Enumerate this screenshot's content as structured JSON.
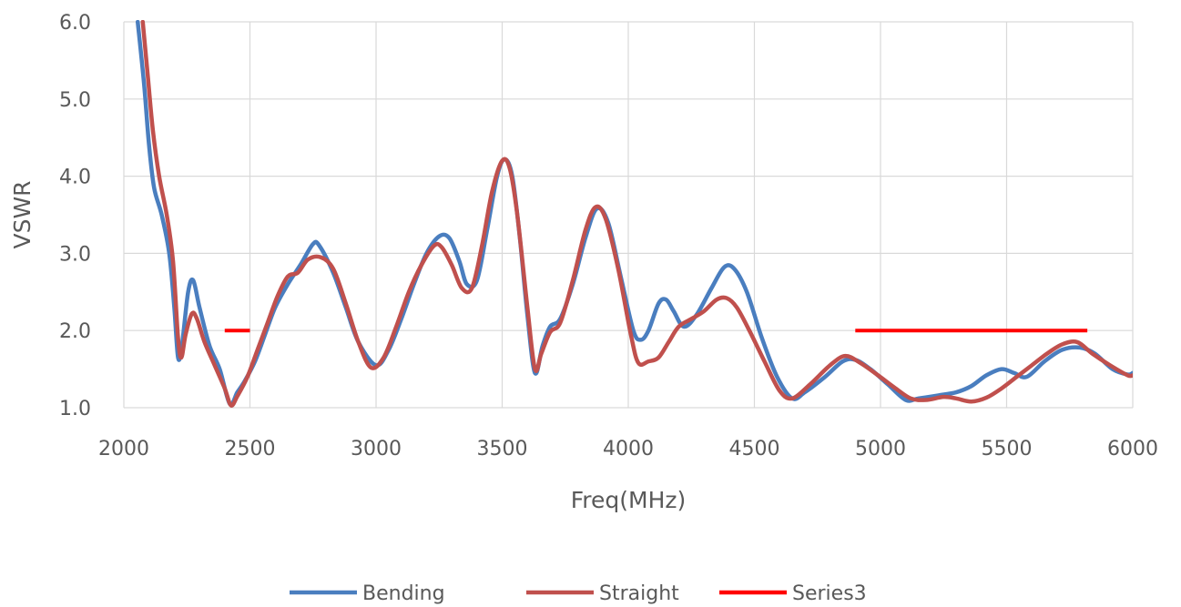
{
  "chart_data": {
    "type": "line",
    "title": "",
    "xlabel": "Freq(MHz)",
    "ylabel": "VSWR",
    "xlim": [
      2000,
      6000
    ],
    "ylim": [
      1.0,
      6.0
    ],
    "x_ticks": [
      "2000",
      "2500",
      "3000",
      "3500",
      "4000",
      "4500",
      "5000",
      "5500",
      "6000"
    ],
    "y_ticks": [
      "1.0",
      "2.0",
      "3.0",
      "4.0",
      "5.0",
      "6.0"
    ],
    "grid": true,
    "legend_position": "bottom",
    "series": [
      {
        "name": "Bending",
        "color": "#4a7ebf",
        "points": [
          [
            2055,
            6.0
          ],
          [
            2080,
            5.2
          ],
          [
            2100,
            4.4
          ],
          [
            2120,
            3.85
          ],
          [
            2150,
            3.5
          ],
          [
            2180,
            3.0
          ],
          [
            2200,
            2.3
          ],
          [
            2215,
            1.65
          ],
          [
            2230,
            1.8
          ],
          [
            2255,
            2.5
          ],
          [
            2275,
            2.65
          ],
          [
            2300,
            2.3
          ],
          [
            2340,
            1.8
          ],
          [
            2380,
            1.5
          ],
          [
            2420,
            1.05
          ],
          [
            2450,
            1.2
          ],
          [
            2480,
            1.35
          ],
          [
            2520,
            1.6
          ],
          [
            2560,
            1.95
          ],
          [
            2600,
            2.3
          ],
          [
            2650,
            2.6
          ],
          [
            2700,
            2.85
          ],
          [
            2750,
            3.12
          ],
          [
            2775,
            3.1
          ],
          [
            2830,
            2.75
          ],
          [
            2880,
            2.3
          ],
          [
            2930,
            1.85
          ],
          [
            3000,
            1.55
          ],
          [
            3050,
            1.75
          ],
          [
            3100,
            2.15
          ],
          [
            3150,
            2.6
          ],
          [
            3200,
            3.0
          ],
          [
            3250,
            3.22
          ],
          [
            3290,
            3.2
          ],
          [
            3330,
            2.9
          ],
          [
            3360,
            2.6
          ],
          [
            3400,
            2.65
          ],
          [
            3440,
            3.3
          ],
          [
            3480,
            4.0
          ],
          [
            3510,
            4.22
          ],
          [
            3540,
            4.0
          ],
          [
            3570,
            3.2
          ],
          [
            3600,
            2.2
          ],
          [
            3630,
            1.45
          ],
          [
            3660,
            1.8
          ],
          [
            3690,
            2.05
          ],
          [
            3730,
            2.15
          ],
          [
            3780,
            2.6
          ],
          [
            3830,
            3.2
          ],
          [
            3875,
            3.58
          ],
          [
            3920,
            3.4
          ],
          [
            3970,
            2.7
          ],
          [
            4020,
            2.0
          ],
          [
            4050,
            1.88
          ],
          [
            4080,
            2.0
          ],
          [
            4120,
            2.35
          ],
          [
            4150,
            2.4
          ],
          [
            4180,
            2.25
          ],
          [
            4220,
            2.05
          ],
          [
            4270,
            2.2
          ],
          [
            4330,
            2.55
          ],
          [
            4380,
            2.82
          ],
          [
            4420,
            2.8
          ],
          [
            4470,
            2.5
          ],
          [
            4530,
            1.9
          ],
          [
            4590,
            1.4
          ],
          [
            4650,
            1.12
          ],
          [
            4700,
            1.2
          ],
          [
            4780,
            1.4
          ],
          [
            4850,
            1.6
          ],
          [
            4900,
            1.62
          ],
          [
            4960,
            1.5
          ],
          [
            5030,
            1.3
          ],
          [
            5100,
            1.1
          ],
          [
            5150,
            1.12
          ],
          [
            5230,
            1.16
          ],
          [
            5300,
            1.2
          ],
          [
            5360,
            1.28
          ],
          [
            5420,
            1.42
          ],
          [
            5480,
            1.5
          ],
          [
            5530,
            1.45
          ],
          [
            5580,
            1.4
          ],
          [
            5650,
            1.6
          ],
          [
            5720,
            1.75
          ],
          [
            5790,
            1.78
          ],
          [
            5850,
            1.7
          ],
          [
            5920,
            1.5
          ],
          [
            5980,
            1.43
          ],
          [
            6000,
            1.45
          ]
        ]
      },
      {
        "name": "Straight",
        "color": "#c0504d",
        "points": [
          [
            2075,
            6.0
          ],
          [
            2095,
            5.3
          ],
          [
            2115,
            4.6
          ],
          [
            2140,
            4.0
          ],
          [
            2170,
            3.5
          ],
          [
            2195,
            2.9
          ],
          [
            2215,
            1.9
          ],
          [
            2228,
            1.65
          ],
          [
            2245,
            1.95
          ],
          [
            2270,
            2.22
          ],
          [
            2290,
            2.15
          ],
          [
            2320,
            1.85
          ],
          [
            2360,
            1.55
          ],
          [
            2400,
            1.25
          ],
          [
            2425,
            1.03
          ],
          [
            2450,
            1.15
          ],
          [
            2490,
            1.4
          ],
          [
            2530,
            1.75
          ],
          [
            2570,
            2.1
          ],
          [
            2610,
            2.45
          ],
          [
            2650,
            2.7
          ],
          [
            2690,
            2.75
          ],
          [
            2730,
            2.92
          ],
          [
            2780,
            2.95
          ],
          [
            2830,
            2.8
          ],
          [
            2880,
            2.35
          ],
          [
            2930,
            1.85
          ],
          [
            2980,
            1.52
          ],
          [
            3030,
            1.65
          ],
          [
            3080,
            2.05
          ],
          [
            3130,
            2.5
          ],
          [
            3180,
            2.85
          ],
          [
            3230,
            3.1
          ],
          [
            3260,
            3.08
          ],
          [
            3300,
            2.85
          ],
          [
            3340,
            2.55
          ],
          [
            3380,
            2.55
          ],
          [
            3420,
            3.1
          ],
          [
            3460,
            3.8
          ],
          [
            3500,
            4.2
          ],
          [
            3530,
            4.1
          ],
          [
            3560,
            3.5
          ],
          [
            3600,
            2.3
          ],
          [
            3630,
            1.5
          ],
          [
            3655,
            1.7
          ],
          [
            3690,
            1.98
          ],
          [
            3730,
            2.1
          ],
          [
            3780,
            2.65
          ],
          [
            3830,
            3.3
          ],
          [
            3870,
            3.6
          ],
          [
            3910,
            3.45
          ],
          [
            3960,
            2.8
          ],
          [
            4010,
            1.95
          ],
          [
            4040,
            1.58
          ],
          [
            4080,
            1.6
          ],
          [
            4120,
            1.65
          ],
          [
            4160,
            1.85
          ],
          [
            4200,
            2.05
          ],
          [
            4250,
            2.15
          ],
          [
            4300,
            2.25
          ],
          [
            4350,
            2.4
          ],
          [
            4390,
            2.42
          ],
          [
            4430,
            2.3
          ],
          [
            4480,
            2.0
          ],
          [
            4540,
            1.6
          ],
          [
            4600,
            1.22
          ],
          [
            4650,
            1.12
          ],
          [
            4720,
            1.3
          ],
          [
            4800,
            1.55
          ],
          [
            4860,
            1.67
          ],
          [
            4920,
            1.58
          ],
          [
            4990,
            1.42
          ],
          [
            5060,
            1.25
          ],
          [
            5120,
            1.12
          ],
          [
            5180,
            1.1
          ],
          [
            5250,
            1.14
          ],
          [
            5300,
            1.12
          ],
          [
            5360,
            1.08
          ],
          [
            5420,
            1.13
          ],
          [
            5480,
            1.25
          ],
          [
            5540,
            1.4
          ],
          [
            5600,
            1.55
          ],
          [
            5660,
            1.7
          ],
          [
            5720,
            1.82
          ],
          [
            5780,
            1.85
          ],
          [
            5840,
            1.7
          ],
          [
            5910,
            1.55
          ],
          [
            5980,
            1.42
          ],
          [
            6000,
            1.42
          ]
        ]
      },
      {
        "name": "Series3",
        "color": "#ff0000",
        "segments": [
          [
            [
              2400,
              2.0
            ],
            [
              2500,
              2.0
            ]
          ],
          [
            [
              4900,
              2.0
            ],
            [
              5820,
              2.0
            ]
          ]
        ]
      }
    ]
  }
}
